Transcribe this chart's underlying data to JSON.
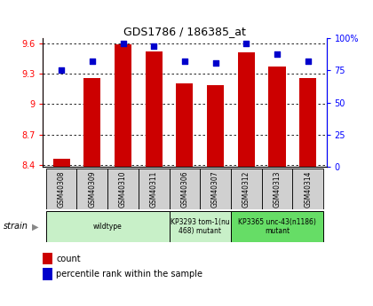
{
  "title": "GDS1786 / 186385_at",
  "samples": [
    "GSM40308",
    "GSM40309",
    "GSM40310",
    "GSM40311",
    "GSM40306",
    "GSM40307",
    "GSM40312",
    "GSM40313",
    "GSM40314"
  ],
  "count_values": [
    8.46,
    9.26,
    9.59,
    9.52,
    9.2,
    9.19,
    9.51,
    9.37,
    9.26
  ],
  "percentile_values": [
    75,
    82,
    96,
    94,
    82,
    81,
    96,
    88,
    82
  ],
  "ylim_left": [
    8.38,
    9.65
  ],
  "ylim_right": [
    0,
    100
  ],
  "yticks_left": [
    8.4,
    8.7,
    9.0,
    9.3,
    9.6
  ],
  "ytick_labels_left": [
    "8.4",
    "8.7",
    "9",
    "9.3",
    "9.6"
  ],
  "yticks_right": [
    0,
    25,
    50,
    75,
    100
  ],
  "ytick_labels_right": [
    "0",
    "25",
    "50",
    "75",
    "100%"
  ],
  "bar_color": "#cc0000",
  "dot_color": "#0000cc",
  "strain_groups": [
    {
      "label": "wildtype",
      "start": 0,
      "end": 3,
      "color": "#c8f0c8"
    },
    {
      "label": "KP3293 tom-1(nu\n468) mutant",
      "start": 4,
      "end": 5,
      "color": "#c8f0c8"
    },
    {
      "label": "KP3365 unc-43(n1186)\nmutant",
      "start": 6,
      "end": 8,
      "color": "#66dd66"
    }
  ],
  "strain_label": "strain",
  "legend_count_label": "count",
  "legend_pct_label": "percentile rank within the sample",
  "grid_color": "black",
  "bar_bottom": 8.38,
  "bg_color": "#ffffff",
  "sample_box_color": "#d0d0d0",
  "tick_fontsize": 7,
  "title_fontsize": 9
}
